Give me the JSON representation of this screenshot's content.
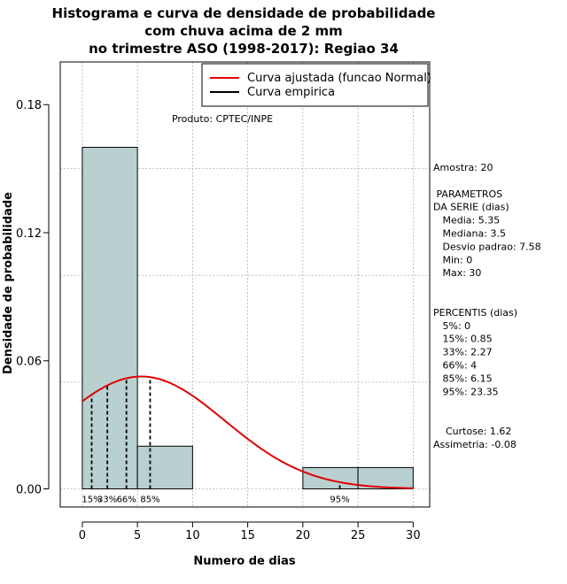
{
  "chart_data": {
    "type": "bar",
    "title_lines": [
      "Histograma e curva de densidade de probabilidade",
      "com chuva acima de 2 mm",
      "no trimestre ASO (1998-2017): Regiao 34"
    ],
    "xlabel": "Numero de dias",
    "ylabel": "Densidade de probabilidade",
    "xlim": [
      -2,
      31.5
    ],
    "ylim": [
      -0.0085,
      0.2
    ],
    "x_ticks": [
      0,
      5,
      10,
      15,
      20,
      25,
      30
    ],
    "x_tick_labels": [
      "0",
      "5",
      "10",
      "15",
      "20",
      "25",
      "30"
    ],
    "y_ticks": [
      0.0,
      0.06,
      0.12,
      0.18
    ],
    "y_tick_labels": [
      "0.00",
      "0.06",
      "0.12",
      "0.18"
    ],
    "grid": true,
    "histogram": {
      "bins": [
        {
          "start": 0,
          "end": 5,
          "density": 0.16
        },
        {
          "start": 5,
          "end": 10,
          "density": 0.02
        },
        {
          "start": 10,
          "end": 15,
          "density": 0.0
        },
        {
          "start": 15,
          "end": 20,
          "density": 0.0
        },
        {
          "start": 20,
          "end": 25,
          "density": 0.01
        },
        {
          "start": 25,
          "end": 30,
          "density": 0.01
        }
      ],
      "fill_color": "#b8d0d0",
      "edge_color": "#000000"
    },
    "fitted_curve": {
      "name": "Curva ajustada (funcao Normal)",
      "distribution": "normal",
      "mean": 5.35,
      "sd": 7.58,
      "x_range": [
        0,
        30
      ],
      "color": "#e00000"
    },
    "empirical_curve": {
      "name": "Curva empirica",
      "color": "#000000"
    },
    "percentile_markers": [
      {
        "x": 0.85,
        "label": "15%"
      },
      {
        "x": 2.27,
        "label": "33%"
      },
      {
        "x": 4.0,
        "label": "66%"
      },
      {
        "x": 6.15,
        "label": "85%"
      },
      {
        "x": 23.35,
        "label": "95%"
      }
    ],
    "legend": {
      "position": "top-right",
      "entries": [
        {
          "label": "Curva ajustada (funcao Normal)",
          "color": "#e00000"
        },
        {
          "label": "Curva empirica",
          "color": "#000000"
        }
      ]
    },
    "annotations": {
      "produto": "Produto: CPTEC/INPE",
      "side_text": [
        "Amostra: 20",
        "",
        " PARAMETROS",
        "DA SERIE (dias)",
        "   Media: 5.35",
        "   Mediana: 3.5",
        "   Desvio padrao: 7.58",
        "   Min: 0",
        "   Max: 30",
        "",
        "",
        "PERCENTIS (dias)",
        "   5%: 0",
        "   15%: 0.85",
        "   33%: 2.27",
        "   66%: 4",
        "   85%: 6.15",
        "   95%: 23.35",
        "",
        "",
        "    Curtose: 1.62",
        "Assimetria: -0.08"
      ]
    }
  }
}
